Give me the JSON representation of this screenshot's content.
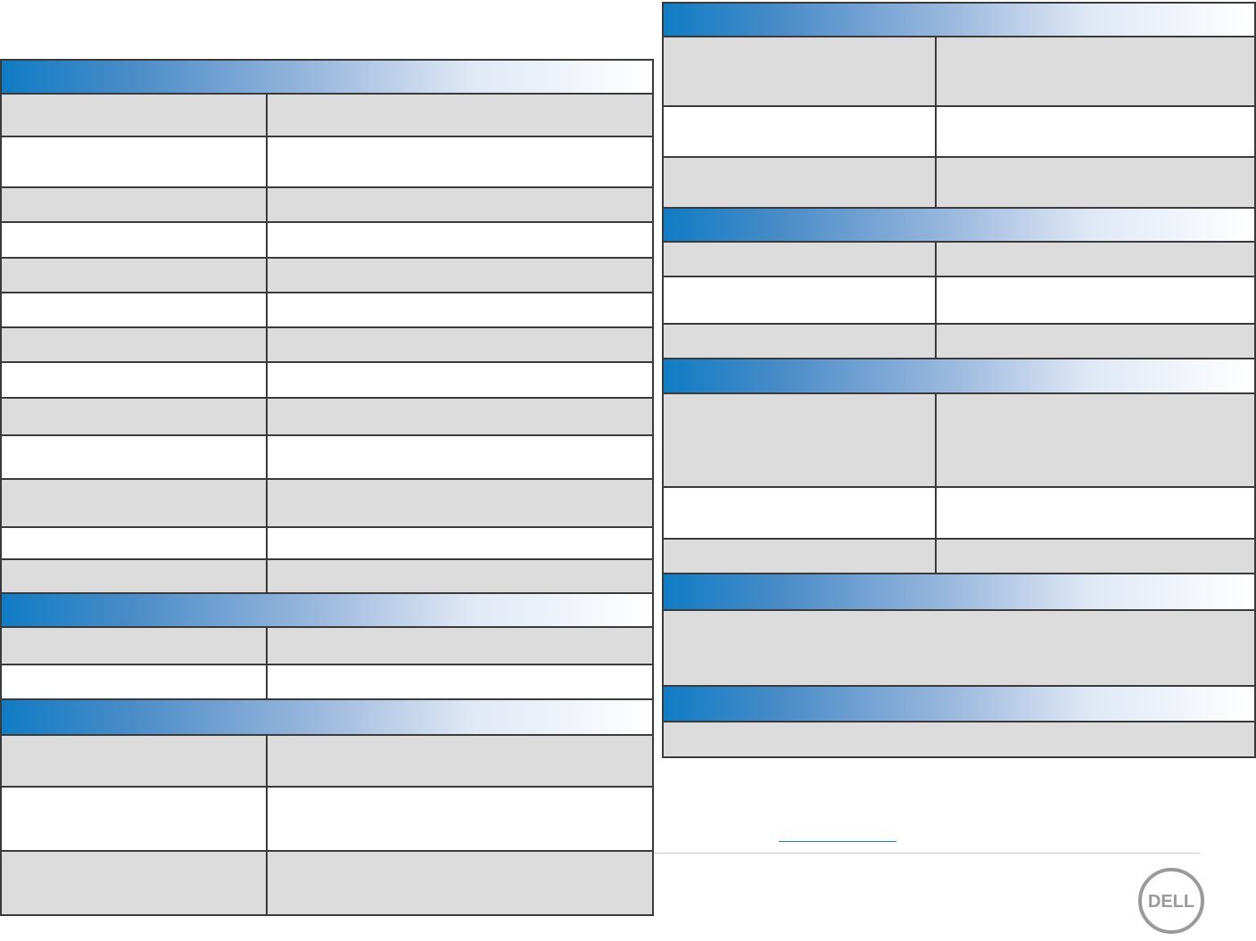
{
  "logo": {
    "text": "DELL"
  }
}
